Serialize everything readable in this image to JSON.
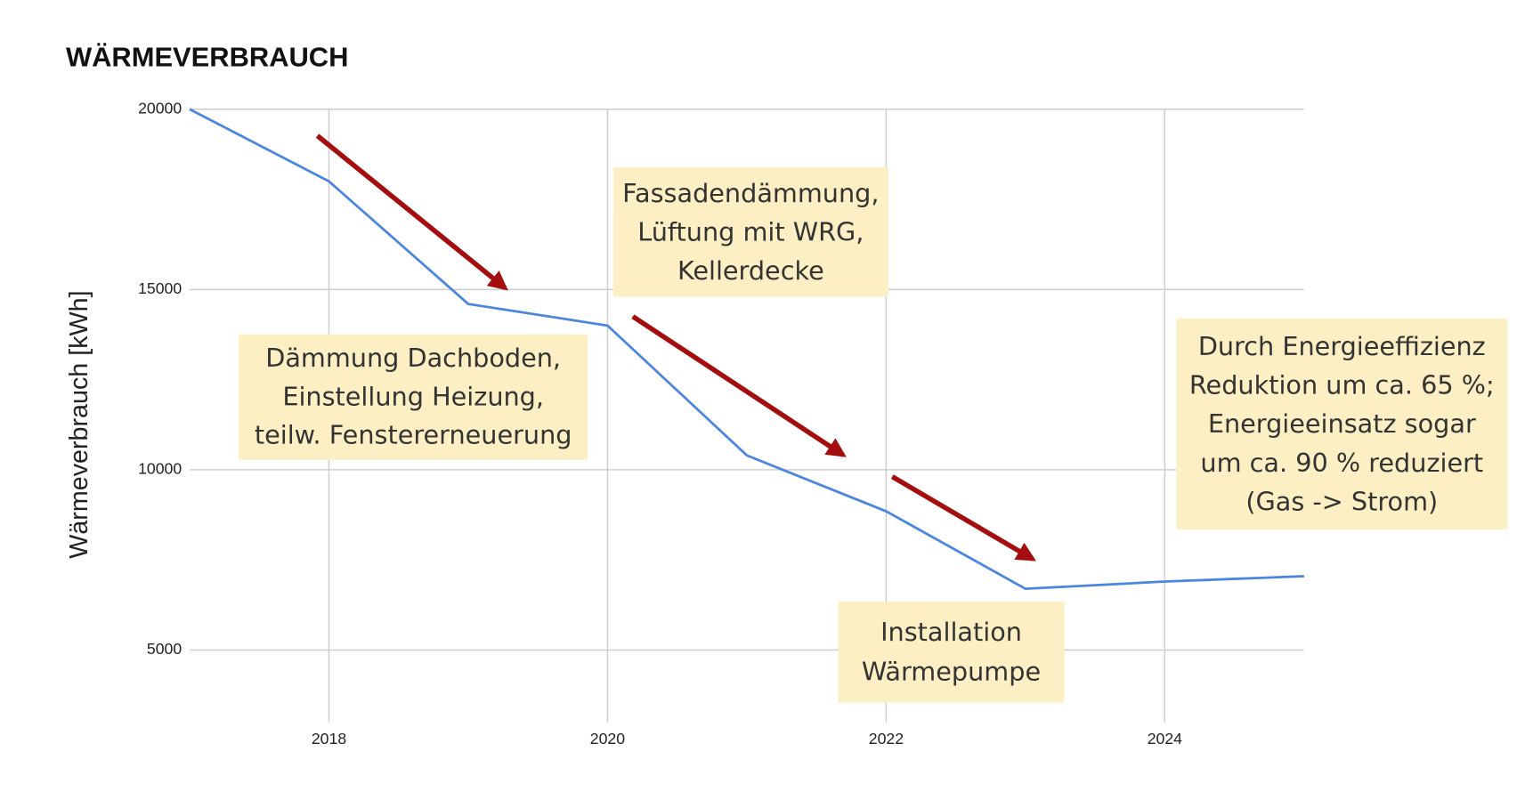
{
  "chart_data": {
    "type": "line",
    "title": "WÄRMEVERBRAUCH",
    "y_label": "Wärmeverbrauch [kWh]",
    "x": [
      2017,
      2018,
      2019,
      2020,
      2021,
      2022,
      2023,
      2024,
      2025
    ],
    "series": [
      {
        "color": "#4a86e0",
        "values": [
          20000,
          18000,
          14600,
          14000,
          10400,
          8850,
          6700,
          6900,
          7050
        ]
      }
    ],
    "xlim": [
      2017,
      2025
    ],
    "xticks": [
      2018,
      2020,
      2022,
      2024
    ],
    "ylim": [
      3000,
      20000
    ],
    "yticks": [
      5000,
      10000,
      15000,
      20000
    ],
    "grid": true,
    "annotations": [
      {
        "lines": [
          "Dämmung Dachboden,",
          "Einstellung Heizung,",
          "teilw. Fenstererneuerung"
        ]
      },
      {
        "lines": [
          "Fassadendämmung,",
          "Lüftung mit WRG,",
          "Kellerdecke"
        ]
      },
      {
        "lines": [
          "Installation",
          "Wärmepumpe"
        ]
      },
      {
        "lines": [
          "Durch Energieeffizienz",
          "Reduktion um ca. 65 %;",
          "Energieeinsatz sogar",
          "um ca. 90 % reduziert",
          "(Gas -> Strom)"
        ]
      }
    ]
  }
}
